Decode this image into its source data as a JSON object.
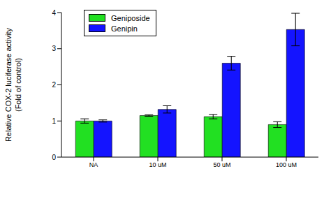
{
  "chart_data": {
    "type": "bar",
    "y_label": [
      "Relative COX-2 luciferase activity",
      "(Fold of control)"
    ],
    "categories": [
      "NA",
      "10 uM",
      "50 uM",
      "100 uM"
    ],
    "series": [
      {
        "name": "Geniposide",
        "color": "#22e022",
        "values": [
          1.0,
          1.15,
          1.12,
          0.9
        ],
        "errors": [
          0.06,
          0.02,
          0.06,
          0.08
        ]
      },
      {
        "name": "Genipin",
        "color": "#1414ff",
        "values": [
          1.0,
          1.32,
          2.6,
          3.53
        ],
        "errors": [
          0.03,
          0.1,
          0.19,
          0.45
        ]
      }
    ],
    "ylim": [
      0,
      4
    ],
    "yticks": [
      0,
      1,
      2,
      3,
      4
    ],
    "legend": "upper left",
    "grid": false
  }
}
